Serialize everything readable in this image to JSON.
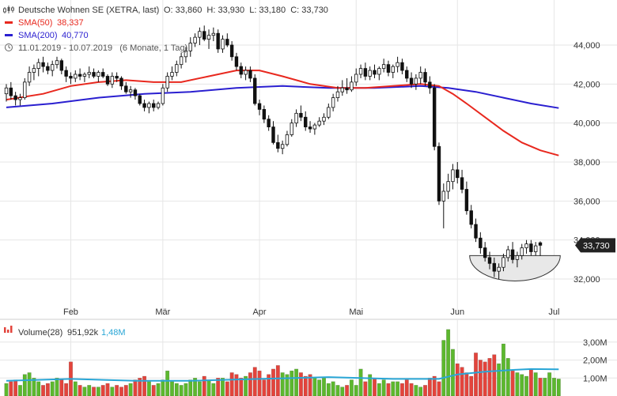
{
  "legend": {
    "title": "Deutsche Wohnen SE (XETRA, last)",
    "ohlc": "O: 33,860  H: 33,930  L: 33,180  C: 33,730",
    "sma50": "SMA(50)",
    "sma50_value": "38,337",
    "sma200": "SMA(200)",
    "sma200_value": "40,770",
    "range": "11.01.2019 - 10.07.2019   (6 Monate, 1 Tag)",
    "volume": "Volume(28)",
    "volume_value": "951,92k",
    "volume_avg_value": "1,48M"
  },
  "last_price_label": "33,730",
  "colors": {
    "up": "#ffffff",
    "down": "#111111",
    "candle_outline": "#111111",
    "sma50": "#e8281e",
    "sma200": "#2a1fd0",
    "vol_up": "#5cb82e",
    "vol_down": "#e3443c",
    "vol_avg": "#29a6d6",
    "bowl_fill": "#e8e8e8"
  },
  "chart_data": {
    "type": "candlestick",
    "price": {
      "ylim": [
        30.5,
        45.5
      ],
      "yticks": [
        32,
        34,
        36,
        38,
        40,
        42,
        44
      ],
      "ytick_labels": [
        "32,000",
        "34,000",
        "36,000",
        "38,000",
        "40,000",
        "42,000",
        "44,000"
      ],
      "x_labels": [
        "Feb",
        "Mär",
        "Apr",
        "Mai",
        "Jun",
        "Jul"
      ],
      "x_label_index": [
        14,
        34,
        55,
        76,
        98,
        119
      ],
      "candles": [
        [
          41.5,
          42.0,
          41.1,
          41.8
        ],
        [
          41.8,
          42.1,
          41.2,
          41.4
        ],
        [
          41.4,
          41.6,
          40.9,
          41.2
        ],
        [
          41.2,
          41.5,
          40.9,
          41.3
        ],
        [
          41.3,
          42.3,
          41.2,
          42.1
        ],
        [
          42.1,
          42.9,
          41.9,
          42.6
        ],
        [
          42.6,
          43.0,
          42.2,
          42.8
        ],
        [
          42.8,
          43.3,
          42.4,
          43.1
        ],
        [
          43.1,
          43.4,
          42.6,
          42.9
        ],
        [
          42.9,
          43.1,
          42.5,
          42.7
        ],
        [
          42.7,
          43.2,
          42.4,
          43.0
        ],
        [
          43.0,
          43.4,
          42.8,
          43.2
        ],
        [
          43.2,
          43.3,
          42.5,
          42.7
        ],
        [
          42.7,
          42.9,
          42.1,
          42.4
        ],
        [
          42.4,
          42.6,
          42.0,
          42.3
        ],
        [
          42.3,
          42.7,
          42.1,
          42.5
        ],
        [
          42.5,
          42.8,
          42.2,
          42.4
        ],
        [
          42.4,
          42.6,
          42.1,
          42.5
        ],
        [
          42.5,
          42.9,
          42.3,
          42.6
        ],
        [
          42.6,
          42.8,
          42.3,
          42.4
        ],
        [
          42.4,
          42.7,
          42.1,
          42.6
        ],
        [
          42.6,
          42.8,
          42.3,
          42.4
        ],
        [
          42.4,
          42.5,
          41.9,
          42.0
        ],
        [
          42.0,
          42.6,
          41.8,
          42.4
        ],
        [
          42.4,
          42.6,
          42.1,
          42.3
        ],
        [
          42.3,
          42.4,
          41.7,
          41.9
        ],
        [
          41.9,
          42.1,
          41.5,
          41.6
        ],
        [
          41.6,
          41.9,
          41.3,
          41.7
        ],
        [
          41.7,
          41.8,
          41.2,
          41.4
        ],
        [
          41.4,
          41.5,
          40.9,
          41.0
        ],
        [
          41.0,
          41.2,
          40.6,
          40.8
        ],
        [
          40.8,
          41.1,
          40.5,
          41.0
        ],
        [
          41.0,
          41.2,
          40.6,
          40.8
        ],
        [
          40.8,
          41.1,
          40.7,
          41.0
        ],
        [
          41.0,
          42.0,
          40.9,
          41.8
        ],
        [
          41.8,
          42.6,
          41.6,
          42.4
        ],
        [
          42.4,
          42.9,
          42.2,
          42.6
        ],
        [
          42.6,
          43.2,
          42.4,
          43.0
        ],
        [
          43.0,
          43.6,
          42.8,
          43.4
        ],
        [
          43.4,
          43.9,
          43.1,
          43.7
        ],
        [
          43.7,
          44.4,
          43.4,
          44.1
        ],
        [
          44.1,
          44.6,
          43.9,
          44.4
        ],
        [
          44.4,
          44.9,
          44.0,
          44.7
        ],
        [
          44.7,
          45.0,
          44.2,
          44.3
        ],
        [
          44.3,
          44.8,
          43.8,
          44.5
        ],
        [
          44.5,
          44.9,
          44.2,
          44.6
        ],
        [
          44.6,
          44.8,
          43.6,
          43.8
        ],
        [
          43.8,
          44.5,
          43.6,
          44.3
        ],
        [
          44.3,
          44.6,
          43.9,
          44.0
        ],
        [
          44.0,
          44.2,
          43.2,
          43.4
        ],
        [
          43.4,
          43.6,
          42.7,
          42.9
        ],
        [
          42.9,
          43.1,
          42.3,
          42.5
        ],
        [
          42.5,
          42.9,
          42.2,
          42.7
        ],
        [
          42.7,
          42.9,
          42.1,
          42.3
        ],
        [
          42.3,
          42.5,
          40.9,
          41.0
        ],
        [
          41.0,
          41.2,
          40.4,
          40.7
        ],
        [
          40.7,
          40.9,
          40.0,
          40.2
        ],
        [
          40.2,
          40.4,
          39.6,
          39.8
        ],
        [
          39.8,
          40.1,
          38.9,
          39.0
        ],
        [
          39.0,
          39.4,
          38.5,
          38.7
        ],
        [
          38.7,
          39.1,
          38.4,
          38.9
        ],
        [
          38.9,
          39.6,
          38.8,
          39.4
        ],
        [
          39.4,
          40.2,
          39.3,
          40.0
        ],
        [
          40.0,
          40.7,
          39.8,
          40.5
        ],
        [
          40.5,
          40.9,
          40.1,
          40.3
        ],
        [
          40.3,
          40.6,
          39.6,
          39.8
        ],
        [
          39.8,
          40.1,
          39.5,
          39.7
        ],
        [
          39.7,
          40.0,
          39.4,
          39.9
        ],
        [
          39.9,
          40.3,
          39.8,
          40.1
        ],
        [
          40.1,
          40.5,
          39.9,
          40.3
        ],
        [
          40.3,
          41.0,
          40.2,
          40.8
        ],
        [
          40.8,
          41.5,
          40.6,
          41.3
        ],
        [
          41.3,
          41.9,
          41.1,
          41.6
        ],
        [
          41.6,
          42.2,
          41.4,
          41.8
        ],
        [
          41.8,
          42.3,
          41.5,
          41.7
        ],
        [
          41.7,
          42.4,
          41.6,
          42.1
        ],
        [
          42.1,
          42.8,
          41.9,
          42.5
        ],
        [
          42.5,
          43.0,
          42.3,
          42.8
        ],
        [
          42.8,
          43.1,
          42.2,
          42.4
        ],
        [
          42.4,
          42.9,
          42.2,
          42.7
        ],
        [
          42.7,
          43.0,
          42.3,
          42.5
        ],
        [
          42.5,
          42.9,
          42.2,
          42.8
        ],
        [
          42.8,
          43.3,
          42.6,
          43.0
        ],
        [
          43.0,
          43.2,
          42.4,
          42.6
        ],
        [
          42.6,
          43.0,
          42.3,
          42.9
        ],
        [
          42.9,
          43.4,
          42.6,
          43.1
        ],
        [
          43.1,
          43.3,
          42.5,
          42.7
        ],
        [
          42.7,
          42.9,
          42.1,
          42.3
        ],
        [
          42.3,
          42.6,
          41.8,
          42.0
        ],
        [
          42.0,
          42.5,
          41.7,
          42.3
        ],
        [
          42.3,
          42.9,
          42.0,
          42.6
        ],
        [
          42.6,
          42.8,
          41.9,
          42.1
        ],
        [
          42.1,
          42.4,
          41.5,
          41.8
        ],
        [
          41.8,
          42.0,
          38.6,
          38.8
        ],
        [
          38.8,
          39.0,
          35.8,
          36.0
        ],
        [
          36.0,
          36.9,
          34.6,
          36.5
        ],
        [
          36.5,
          37.4,
          36.1,
          37.0
        ],
        [
          37.0,
          37.9,
          36.6,
          37.6
        ],
        [
          37.6,
          38.0,
          36.9,
          37.2
        ],
        [
          37.2,
          37.6,
          36.4,
          36.6
        ],
        [
          36.6,
          37.0,
          35.3,
          35.5
        ],
        [
          35.5,
          35.8,
          34.6,
          34.8
        ],
        [
          34.8,
          35.1,
          33.9,
          34.1
        ],
        [
          34.1,
          34.4,
          33.3,
          33.6
        ],
        [
          33.6,
          33.9,
          32.9,
          33.1
        ],
        [
          33.1,
          33.4,
          32.5,
          32.8
        ],
        [
          32.8,
          33.1,
          32.1,
          32.4
        ],
        [
          32.4,
          32.8,
          32.0,
          32.6
        ],
        [
          32.6,
          33.3,
          32.4,
          33.1
        ],
        [
          33.1,
          33.7,
          32.9,
          33.5
        ],
        [
          33.5,
          33.9,
          32.8,
          33.0
        ],
        [
          33.0,
          33.4,
          32.6,
          33.2
        ],
        [
          33.2,
          33.8,
          33.0,
          33.6
        ],
        [
          33.6,
          34.0,
          33.3,
          33.8
        ],
        [
          33.8,
          34.0,
          33.2,
          33.4
        ],
        [
          33.4,
          33.9,
          33.2,
          33.7
        ],
        [
          33.86,
          33.93,
          33.18,
          33.73
        ]
      ],
      "sma50": [
        [
          0,
          41.2
        ],
        [
          8,
          41.5
        ],
        [
          14,
          41.9
        ],
        [
          20,
          42.1
        ],
        [
          26,
          42.2
        ],
        [
          32,
          42.1
        ],
        [
          38,
          42.1
        ],
        [
          44,
          42.4
        ],
        [
          50,
          42.7
        ],
        [
          55,
          42.7
        ],
        [
          60,
          42.4
        ],
        [
          66,
          42.0
        ],
        [
          72,
          41.8
        ],
        [
          78,
          41.8
        ],
        [
          84,
          41.9
        ],
        [
          90,
          42.0
        ],
        [
          94,
          41.9
        ],
        [
          97,
          41.5
        ],
        [
          100,
          41.0
        ],
        [
          104,
          40.3
        ],
        [
          108,
          39.6
        ],
        [
          112,
          39.0
        ],
        [
          116,
          38.6
        ],
        [
          120,
          38.337
        ]
      ],
      "sma200": [
        [
          0,
          40.8
        ],
        [
          10,
          41.0
        ],
        [
          20,
          41.3
        ],
        [
          30,
          41.5
        ],
        [
          40,
          41.6
        ],
        [
          50,
          41.8
        ],
        [
          60,
          41.9
        ],
        [
          70,
          41.8
        ],
        [
          80,
          41.8
        ],
        [
          90,
          41.9
        ],
        [
          96,
          41.8
        ],
        [
          102,
          41.6
        ],
        [
          108,
          41.3
        ],
        [
          114,
          41.0
        ],
        [
          120,
          40.77
        ]
      ],
      "bowl": {
        "start_index": 101,
        "end_index": 120,
        "top": 33.2,
        "bottom": 31.9
      }
    },
    "volume": {
      "ylim": [
        0,
        4.0
      ],
      "yticks": [
        1,
        2,
        3
      ],
      "ytick_labels": [
        "1,00M",
        "2,00M",
        "3,00M"
      ],
      "values": [
        0.7,
        0.8,
        0.9,
        0.6,
        1.2,
        1.3,
        1.0,
        0.8,
        0.6,
        0.7,
        0.8,
        1.0,
        0.9,
        0.7,
        1.9,
        0.8,
        0.6,
        0.5,
        0.6,
        0.5,
        0.5,
        0.6,
        0.7,
        0.5,
        0.6,
        0.5,
        0.6,
        0.7,
        0.9,
        1.0,
        1.1,
        0.8,
        0.6,
        0.7,
        0.9,
        1.4,
        0.8,
        0.7,
        0.6,
        0.7,
        0.9,
        1.0,
        0.8,
        1.1,
        0.9,
        0.7,
        1.0,
        1.0,
        0.8,
        1.3,
        1.2,
        1.0,
        1.1,
        1.3,
        1.6,
        1.4,
        0.9,
        1.2,
        1.5,
        1.7,
        1.3,
        1.2,
        1.4,
        1.5,
        1.3,
        1.1,
        1.2,
        1.0,
        0.9,
        1.0,
        0.7,
        0.8,
        0.6,
        0.5,
        0.6,
        0.9,
        0.6,
        1.5,
        0.8,
        1.2,
        1.0,
        0.7,
        0.9,
        0.7,
        0.8,
        0.8,
        0.7,
        0.9,
        0.7,
        0.6,
        0.5,
        0.6,
        1.0,
        1.1,
        0.8,
        3.1,
        3.7,
        2.6,
        1.8,
        1.6,
        1.3,
        1.1,
        2.4,
        2.0,
        1.9,
        2.1,
        2.3,
        1.8,
        2.9,
        2.1,
        1.4,
        1.3,
        1.2,
        1.1,
        1.5,
        1.3,
        1.0,
        1.0,
        1.3,
        1.0,
        0.95
      ],
      "avg": [
        [
          0,
          0.85
        ],
        [
          14,
          0.95
        ],
        [
          28,
          0.85
        ],
        [
          40,
          0.85
        ],
        [
          55,
          0.95
        ],
        [
          70,
          1.05
        ],
        [
          84,
          0.95
        ],
        [
          94,
          0.95
        ],
        [
          98,
          1.2
        ],
        [
          104,
          1.35
        ],
        [
          110,
          1.45
        ],
        [
          114,
          1.5
        ],
        [
          120,
          1.48
        ]
      ]
    }
  }
}
